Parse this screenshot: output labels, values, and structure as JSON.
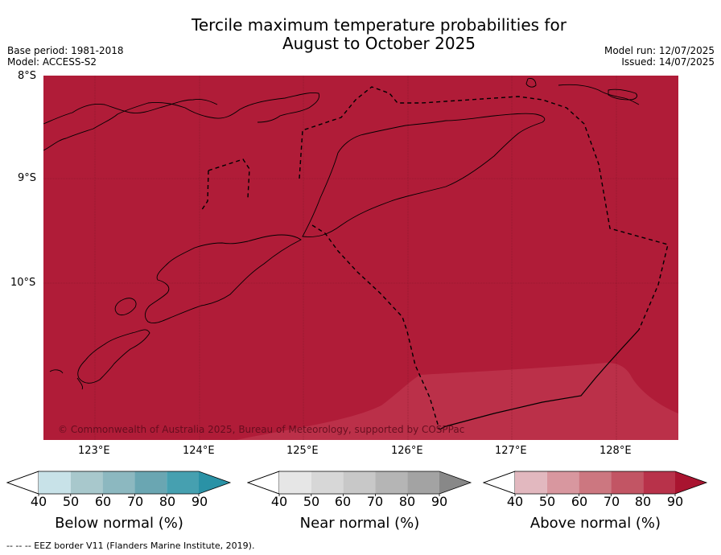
{
  "title": {
    "line1": "Tercile maximum temperature probabilities for",
    "line2": "August to October 2025"
  },
  "meta_left": {
    "base_period": "Base period: 1981-2018",
    "model": "Model: ACCESS-S2"
  },
  "meta_right": {
    "model_run": "Model run: 12/07/2025",
    "issued": "Issued: 14/07/2025"
  },
  "map": {
    "lat_labels": [
      "8°S",
      "9°S",
      "10°S"
    ],
    "lon_labels": [
      "123°E",
      "124°E",
      "125°E",
      "126°E",
      "127°E",
      "128°E"
    ],
    "fill_primary": "#b01c38",
    "fill_secondary": "#bb3049",
    "copyright": "© Commonwealth of Australia 2025, Bureau of Meteorology, supported by COSPPac"
  },
  "colorbars": [
    {
      "label": "Below normal (%)",
      "ticks": [
        "40",
        "50",
        "60",
        "70",
        "80",
        "90"
      ],
      "colors": [
        "#ffffff",
        "#c8e2e8",
        "#a8c8cc",
        "#8cb8c0",
        "#6aa6b2",
        "#46a0b0",
        "#2a92a6"
      ]
    },
    {
      "label": "Near normal (%)",
      "ticks": [
        "40",
        "50",
        "60",
        "70",
        "80",
        "90"
      ],
      "colors": [
        "#ffffff",
        "#e6e6e6",
        "#d7d7d7",
        "#c8c8c8",
        "#b5b5b5",
        "#a3a3a3",
        "#888888"
      ]
    },
    {
      "label": "Above normal (%)",
      "ticks": [
        "40",
        "50",
        "60",
        "70",
        "80",
        "90"
      ],
      "colors": [
        "#ffffff",
        "#e2b8bf",
        "#d8979f",
        "#cc7780",
        "#c25564",
        "#b8324a",
        "#a91430"
      ]
    }
  ],
  "footer": "--  --  -- EEZ border V11 (Flanders Marine Institute, 2019)."
}
